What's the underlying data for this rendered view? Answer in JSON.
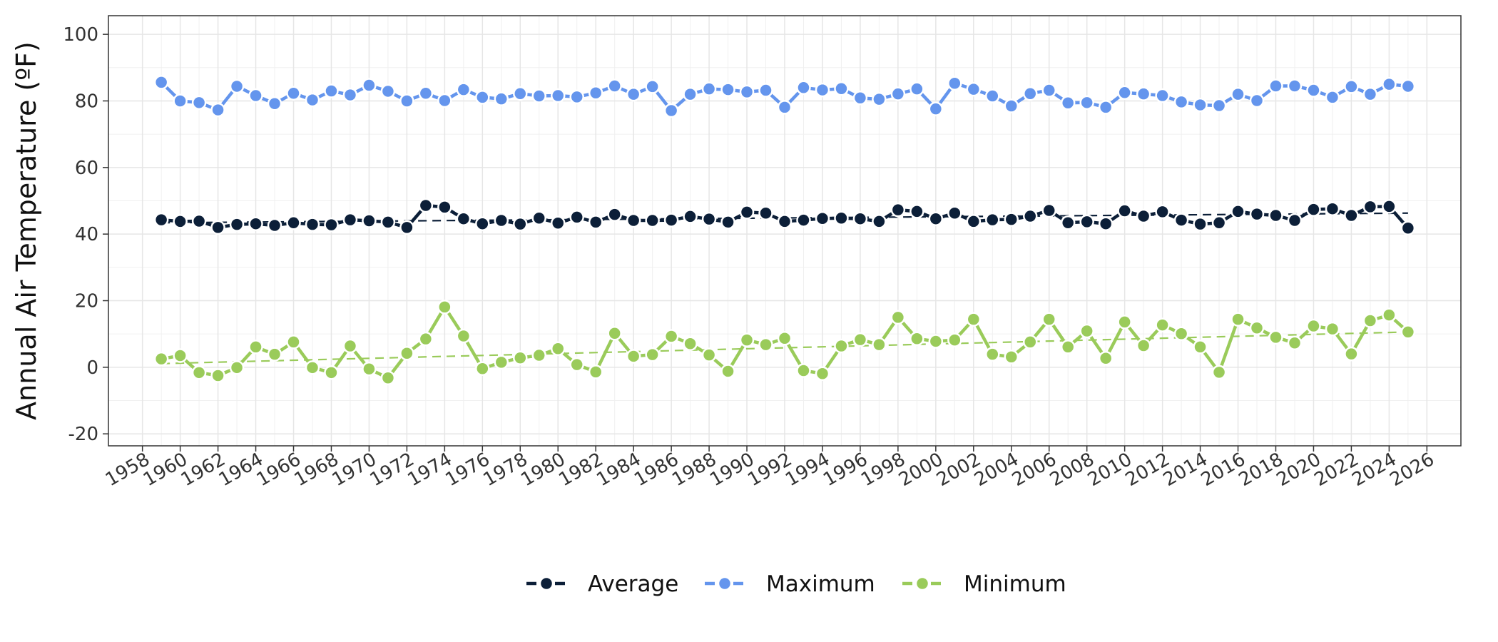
{
  "chart_data": {
    "type": "line",
    "title": "",
    "xlabel": "",
    "ylabel": "Annual Air Temperature (ºF)",
    "xlim": [
      1956.2,
      2027.8
    ],
    "ylim": [
      -23.6,
      105.6
    ],
    "x_ticks": [
      1958,
      1960,
      1962,
      1964,
      1966,
      1968,
      1970,
      1972,
      1974,
      1976,
      1978,
      1980,
      1982,
      1984,
      1986,
      1988,
      1990,
      1992,
      1994,
      1996,
      1998,
      2000,
      2002,
      2004,
      2006,
      2008,
      2010,
      2012,
      2014,
      2016,
      2018,
      2020,
      2022,
      2024,
      2026
    ],
    "y_ticks": [
      -20,
      0,
      20,
      40,
      60,
      80,
      100
    ],
    "grid": true,
    "legend_position": "bottom",
    "years": [
      1959,
      1960,
      1961,
      1962,
      1963,
      1964,
      1965,
      1966,
      1967,
      1968,
      1969,
      1970,
      1971,
      1972,
      1973,
      1974,
      1975,
      1976,
      1977,
      1978,
      1979,
      1980,
      1981,
      1982,
      1983,
      1984,
      1985,
      1986,
      1987,
      1988,
      1989,
      1990,
      1991,
      1992,
      1993,
      1994,
      1995,
      1996,
      1997,
      1998,
      1999,
      2000,
      2001,
      2002,
      2003,
      2004,
      2005,
      2006,
      2007,
      2008,
      2009,
      2010,
      2011,
      2012,
      2013,
      2014,
      2015,
      2016,
      2017,
      2018,
      2019,
      2020,
      2021,
      2022,
      2023,
      2024,
      2025
    ],
    "series": [
      {
        "name": "Average",
        "color": "#0c1f38",
        "values": [
          44.3,
          43.8,
          43.9,
          42.0,
          42.9,
          43.1,
          42.6,
          43.4,
          42.9,
          42.8,
          44.3,
          44.0,
          43.6,
          42.0,
          48.6,
          48.1,
          44.6,
          43.1,
          44.1,
          43.0,
          44.8,
          43.3,
          45.1,
          43.6,
          45.9,
          44.1,
          44.1,
          44.2,
          45.3,
          44.5,
          43.6,
          46.6,
          46.3,
          43.8,
          44.2,
          44.7,
          44.8,
          44.6,
          43.8,
          47.3,
          46.8,
          44.6,
          46.3,
          43.8,
          44.3,
          44.4,
          45.4,
          47.1,
          43.4,
          43.7,
          43.1,
          47.0,
          45.4,
          46.7,
          44.2,
          43.0,
          43.4,
          46.8,
          46.0,
          45.6,
          44.1,
          47.4,
          47.6,
          45.6,
          48.2,
          48.3,
          41.8
        ],
        "trend": [
          43.4,
          46.3
        ]
      },
      {
        "name": "Maximum",
        "color": "#6495ed",
        "values": [
          85.6,
          80.0,
          79.5,
          77.3,
          84.4,
          81.6,
          79.2,
          82.3,
          80.3,
          83.0,
          81.8,
          84.7,
          82.9,
          80.0,
          82.3,
          80.1,
          83.4,
          81.1,
          80.6,
          82.2,
          81.5,
          81.6,
          81.2,
          82.4,
          84.5,
          82.0,
          84.3,
          77.1,
          82.0,
          83.6,
          83.4,
          82.7,
          83.2,
          78.1,
          84.0,
          83.3,
          83.7,
          80.9,
          80.5,
          82.1,
          83.6,
          77.6,
          85.3,
          83.5,
          81.5,
          78.5,
          82.2,
          83.2,
          79.4,
          79.5,
          78.1,
          82.5,
          82.1,
          81.6,
          79.7,
          78.8,
          78.6,
          82.0,
          80.1,
          84.5,
          84.5,
          83.2,
          81.1,
          84.3,
          82.0,
          85.0,
          84.4
        ]
      },
      {
        "name": "Minimum",
        "color": "#9acb5a",
        "values": [
          2.5,
          3.5,
          -1.6,
          -2.5,
          -0.1,
          6.1,
          3.9,
          7.6,
          -0.1,
          -1.6,
          6.4,
          -0.5,
          -3.2,
          4.2,
          8.5,
          18.1,
          9.4,
          -0.4,
          1.5,
          2.8,
          3.6,
          5.6,
          0.8,
          -1.4,
          10.2,
          3.3,
          3.8,
          9.3,
          7.1,
          3.7,
          -1.2,
          8.2,
          6.8,
          8.7,
          -1.0,
          -1.9,
          6.4,
          8.3,
          6.8,
          15.0,
          8.6,
          7.8,
          8.2,
          14.4,
          3.9,
          3.1,
          7.6,
          14.4,
          6.1,
          10.9,
          2.7,
          13.6,
          6.5,
          12.7,
          10.1,
          6.1,
          -1.5,
          14.4,
          11.8,
          9.0,
          7.3,
          12.4,
          11.5,
          4.0,
          14.0,
          15.7,
          10.6
        ],
        "trend": [
          1.1,
          10.6
        ]
      }
    ]
  }
}
